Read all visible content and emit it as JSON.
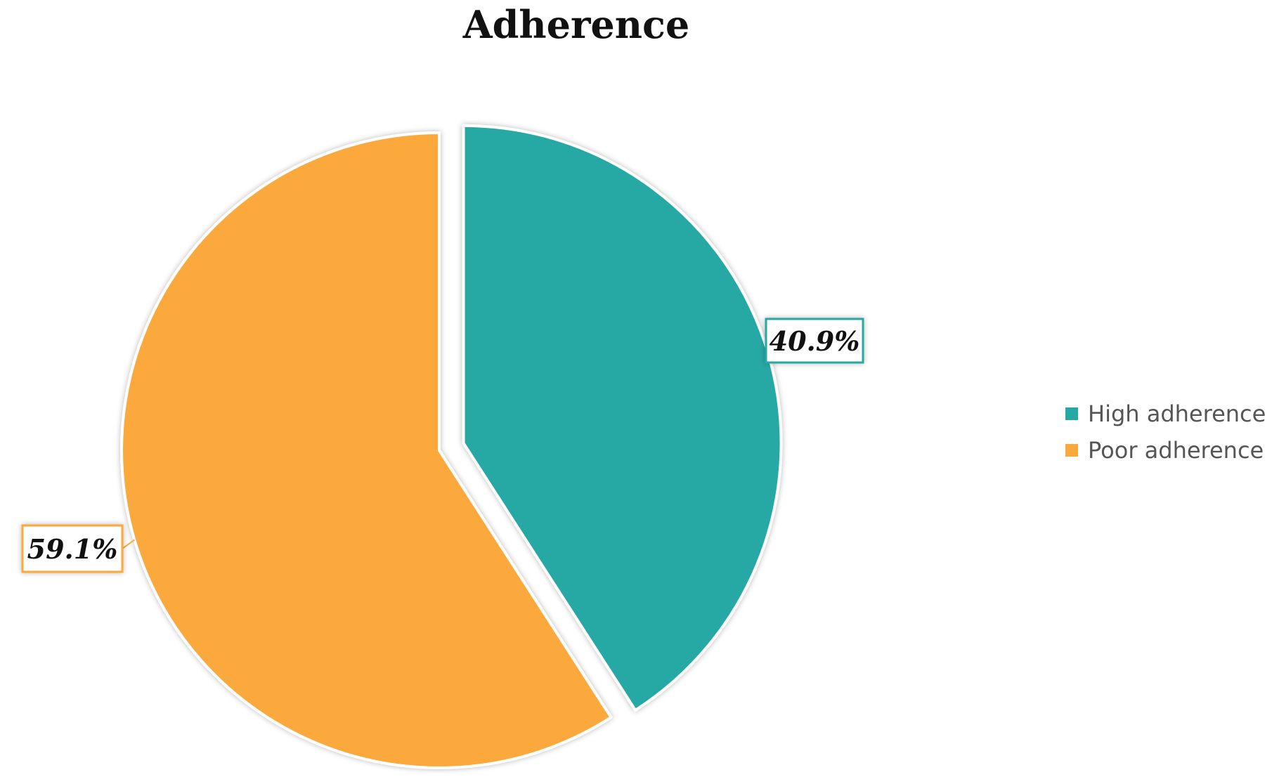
{
  "chart_data": {
    "type": "pie",
    "title": "Adherence",
    "slices": [
      {
        "label": "High adherence",
        "value": 40.9,
        "display": "40.9%",
        "color": "#27A8A5",
        "exploded": true
      },
      {
        "label": "Poor adherence",
        "value": 59.1,
        "display": "59.1%",
        "color": "#FBA93D",
        "exploded": false
      }
    ],
    "legend_position": "right",
    "start_angle": "12 o'clock, clockwise"
  },
  "legend": {
    "items": [
      {
        "label": "High adherence",
        "color": "#27A8A5"
      },
      {
        "label": "Poor adherence",
        "color": "#FBA93D"
      }
    ]
  }
}
